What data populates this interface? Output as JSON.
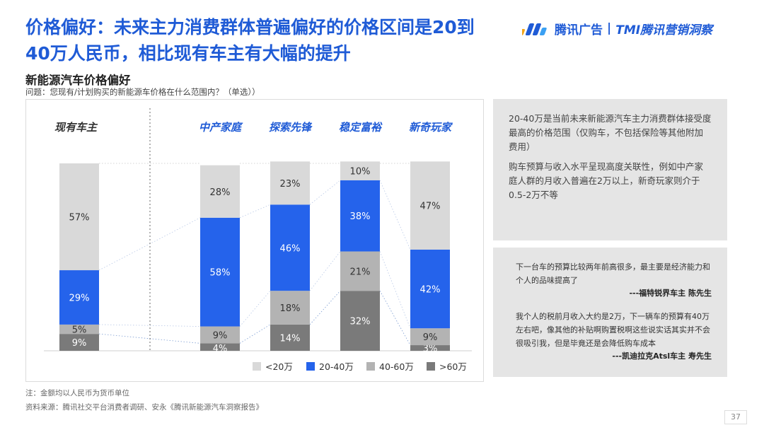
{
  "title": "价格偏好：未来主力消费群体普遍偏好的价格区间是20到40万人民币，相比现有车主有大幅的提升",
  "logo": {
    "brand": "腾讯广告",
    "sub": "TMI腾讯营销洞察"
  },
  "subtitle": "新能源汽车价格偏好",
  "question": "问题：您现有/计划购买的新能源车价格在什么范围内？（单选））",
  "info": {
    "p1": "20-40万是当前未来新能源汽车主力消费群体接受度最高的价格范围（仅购车，不包括保险等其他附加费用）",
    "p2": "购车预算与收入水平呈现高度关联性，例如中产家庭人群的月收入普遍在2万以上，新奇玩家则介于0.5-2万不等"
  },
  "quotes": [
    {
      "text": "下一台车的预算比较两年前高很多，最主要是经济能力和个人的品味提高了",
      "author": "---福特锐界车主 陈先生"
    },
    {
      "text": "我个人的税前月收入大约是2万，下一辆车的预算有40万左右吧，像其他的补贴啊购置税啊这些说实话其实并不会很吸引我，但是毕竟还是会降低购车成本",
      "author": "---凯迪拉克Atsl车主 寿先生"
    }
  ],
  "note": "注：金额均以人民币为货币单位",
  "source": "资料来源：腾讯社交平台消费者调研、安永《腾讯新能源汽车洞察报告》",
  "page_number": "37",
  "chart_data": {
    "type": "bar",
    "stacked": true,
    "normalized": true,
    "categories": [
      "现有车主",
      "中产家庭",
      "探索先锋",
      "稳定富裕",
      "新奇玩家"
    ],
    "category_colors": [
      "#333333",
      "#1f5bd6",
      "#1f5bd6",
      "#1f5bd6",
      "#1f5bd6"
    ],
    "series": [
      {
        "name": ">60万",
        "color": "#7a7a7a",
        "values": [
          9,
          4,
          14,
          32,
          3
        ]
      },
      {
        "name": "40-60万",
        "color": "#b3b3b3",
        "values": [
          5,
          9,
          18,
          21,
          9
        ]
      },
      {
        "name": "20-40万",
        "color": "#2563eb",
        "values": [
          29,
          58,
          46,
          38,
          42
        ]
      },
      {
        "name": "<20万",
        "color": "#d9d9d9",
        "values": [
          57,
          28,
          23,
          10,
          47
        ]
      }
    ],
    "legend_order": [
      "<20万",
      "20-40万",
      "40-60万",
      ">60万"
    ],
    "value_suffix": "%",
    "legend_position": "bottom-right"
  }
}
